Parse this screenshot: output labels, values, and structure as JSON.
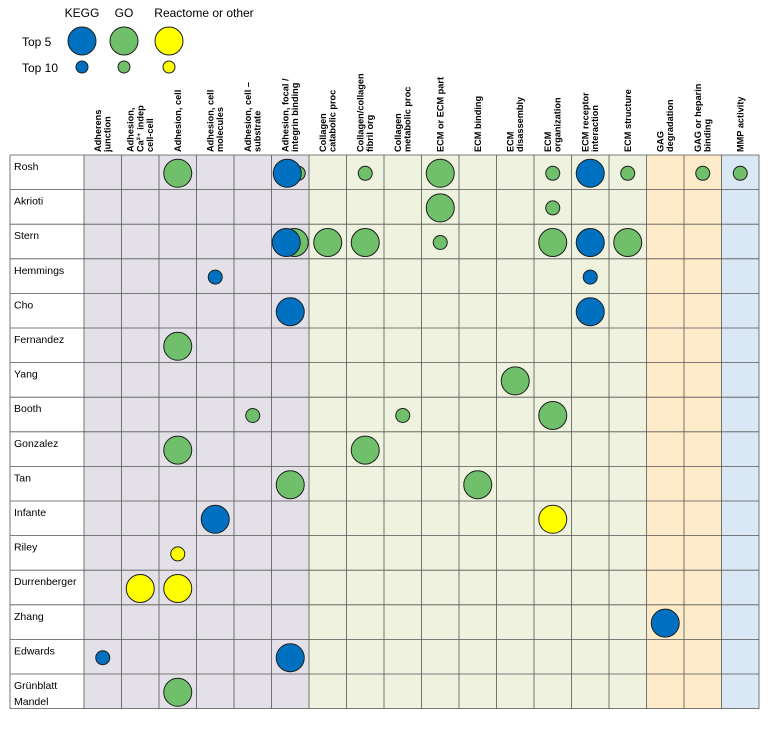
{
  "chart_data": {
    "type": "table",
    "legend": {
      "categories": [
        {
          "name": "KEGG",
          "color": "#0070c0"
        },
        {
          "name": "GO",
          "color": "#70bf6a"
        },
        {
          "name": "Reactome or other",
          "color": "#ffff00"
        }
      ],
      "sizes": [
        {
          "name": "Top 5",
          "key": "top5"
        },
        {
          "name": "Top 10",
          "key": "top10"
        }
      ]
    },
    "column_groups": [
      {
        "name": "adhesion",
        "color": "#e3e1e7",
        "columns": [
          0,
          1,
          2,
          3,
          4,
          5
        ]
      },
      {
        "name": "collagen-ecm",
        "color": "#eef2df",
        "columns": [
          6,
          7,
          8,
          9,
          10,
          11,
          12,
          13,
          14
        ]
      },
      {
        "name": "gag",
        "color": "#fdebc9",
        "columns": [
          15,
          16
        ]
      },
      {
        "name": "mmp",
        "color": "#dae8f5",
        "columns": [
          17
        ]
      }
    ],
    "columns": [
      {
        "lines": [
          "Adherens",
          "junction"
        ]
      },
      {
        "lines": [
          "Adhesion,",
          "Ca²⁺ indep",
          "cell-cell"
        ]
      },
      {
        "lines": [
          "Adhesion, cell"
        ]
      },
      {
        "lines": [
          "Adhesion, cell",
          "molecules"
        ]
      },
      {
        "lines": [
          "Adhesion, cell –",
          "substrate"
        ]
      },
      {
        "lines": [
          "Adhesion, focal /",
          "integrin binding"
        ]
      },
      {
        "lines": [
          "Collagen",
          "catabolic proc"
        ]
      },
      {
        "lines": [
          "Collagen/collagen",
          "fibril org"
        ]
      },
      {
        "lines": [
          "Collagen",
          "metabolic proc"
        ]
      },
      {
        "lines": [
          "ECM or ECM part"
        ]
      },
      {
        "lines": [
          "ECM binding"
        ]
      },
      {
        "lines": [
          "ECM",
          "disassembly"
        ]
      },
      {
        "lines": [
          "ECM",
          "organization"
        ]
      },
      {
        "lines": [
          "ECM receptor",
          "interaction"
        ]
      },
      {
        "lines": [
          "ECM structure"
        ]
      },
      {
        "lines": [
          "GAG",
          "degradation"
        ]
      },
      {
        "lines": [
          "GAG or heparin",
          "binding"
        ]
      },
      {
        "lines": [
          "MMP activity"
        ]
      }
    ],
    "rows": [
      {
        "label": [
          "Rosh"
        ],
        "cells": [
          {
            "col": 2,
            "src": "GO",
            "rank": "top5"
          },
          {
            "col": 5,
            "src": "KEGG",
            "rank": "top5"
          },
          {
            "col": 5,
            "src": "GO",
            "rank": "top10"
          },
          {
            "col": 7,
            "src": "GO",
            "rank": "top10"
          },
          {
            "col": 9,
            "src": "GO",
            "rank": "top5"
          },
          {
            "col": 12,
            "src": "GO",
            "rank": "top10"
          },
          {
            "col": 13,
            "src": "KEGG",
            "rank": "top5"
          },
          {
            "col": 14,
            "src": "GO",
            "rank": "top10"
          },
          {
            "col": 16,
            "src": "GO",
            "rank": "top10"
          },
          {
            "col": 17,
            "src": "GO",
            "rank": "top10"
          }
        ]
      },
      {
        "label": [
          "Akrioti"
        ],
        "cells": [
          {
            "col": 9,
            "src": "GO",
            "rank": "top5"
          },
          {
            "col": 12,
            "src": "GO",
            "rank": "top10"
          }
        ]
      },
      {
        "label": [
          "Stern"
        ],
        "cells": [
          {
            "col": 5,
            "src": "GO",
            "rank": "top5"
          },
          {
            "col": 5,
            "src": "KEGG",
            "rank": "top5"
          },
          {
            "col": 6,
            "src": "GO",
            "rank": "top5"
          },
          {
            "col": 7,
            "src": "GO",
            "rank": "top5"
          },
          {
            "col": 9,
            "src": "GO",
            "rank": "top10"
          },
          {
            "col": 12,
            "src": "GO",
            "rank": "top5"
          },
          {
            "col": 13,
            "src": "KEGG",
            "rank": "top5"
          },
          {
            "col": 14,
            "src": "GO",
            "rank": "top5"
          }
        ]
      },
      {
        "label": [
          "Hemmings"
        ],
        "cells": [
          {
            "col": 3,
            "src": "KEGG",
            "rank": "top10"
          },
          {
            "col": 13,
            "src": "KEGG",
            "rank": "top10"
          }
        ]
      },
      {
        "label": [
          "Cho"
        ],
        "cells": [
          {
            "col": 5,
            "src": "KEGG",
            "rank": "top5"
          },
          {
            "col": 13,
            "src": "KEGG",
            "rank": "top5"
          }
        ]
      },
      {
        "label": [
          "Fernandez"
        ],
        "cells": [
          {
            "col": 2,
            "src": "GO",
            "rank": "top5"
          }
        ]
      },
      {
        "label": [
          "Yang"
        ],
        "cells": [
          {
            "col": 11,
            "src": "GO",
            "rank": "top5"
          }
        ]
      },
      {
        "label": [
          "Booth"
        ],
        "cells": [
          {
            "col": 4,
            "src": "GO",
            "rank": "top10"
          },
          {
            "col": 8,
            "src": "GO",
            "rank": "top10"
          },
          {
            "col": 12,
            "src": "GO",
            "rank": "top5"
          }
        ]
      },
      {
        "label": [
          "Gonzalez"
        ],
        "cells": [
          {
            "col": 2,
            "src": "GO",
            "rank": "top5"
          },
          {
            "col": 7,
            "src": "GO",
            "rank": "top5"
          }
        ]
      },
      {
        "label": [
          "Tan"
        ],
        "cells": [
          {
            "col": 5,
            "src": "GO",
            "rank": "top5"
          },
          {
            "col": 10,
            "src": "GO",
            "rank": "top5"
          }
        ]
      },
      {
        "label": [
          "Infante"
        ],
        "cells": [
          {
            "col": 3,
            "src": "KEGG",
            "rank": "top5"
          },
          {
            "col": 12,
            "src": "Reactome or other",
            "rank": "top5"
          }
        ]
      },
      {
        "label": [
          "Riley"
        ],
        "cells": [
          {
            "col": 2,
            "src": "Reactome or other",
            "rank": "top10"
          }
        ]
      },
      {
        "label": [
          "Durrenberger"
        ],
        "cells": [
          {
            "col": 1,
            "src": "Reactome or other",
            "rank": "top5"
          },
          {
            "col": 2,
            "src": "Reactome or other",
            "rank": "top5"
          }
        ]
      },
      {
        "label": [
          "Zhang"
        ],
        "cells": [
          {
            "col": 15,
            "src": "KEGG",
            "rank": "top5"
          }
        ]
      },
      {
        "label": [
          "Edwards"
        ],
        "cells": [
          {
            "col": 0,
            "src": "KEGG",
            "rank": "top10"
          },
          {
            "col": 5,
            "src": "KEGG",
            "rank": "top5"
          }
        ]
      },
      {
        "label": [
          "Grünblatt",
          "Mandel"
        ],
        "cells": [
          {
            "col": 2,
            "src": "GO",
            "rank": "top5"
          }
        ]
      }
    ]
  }
}
